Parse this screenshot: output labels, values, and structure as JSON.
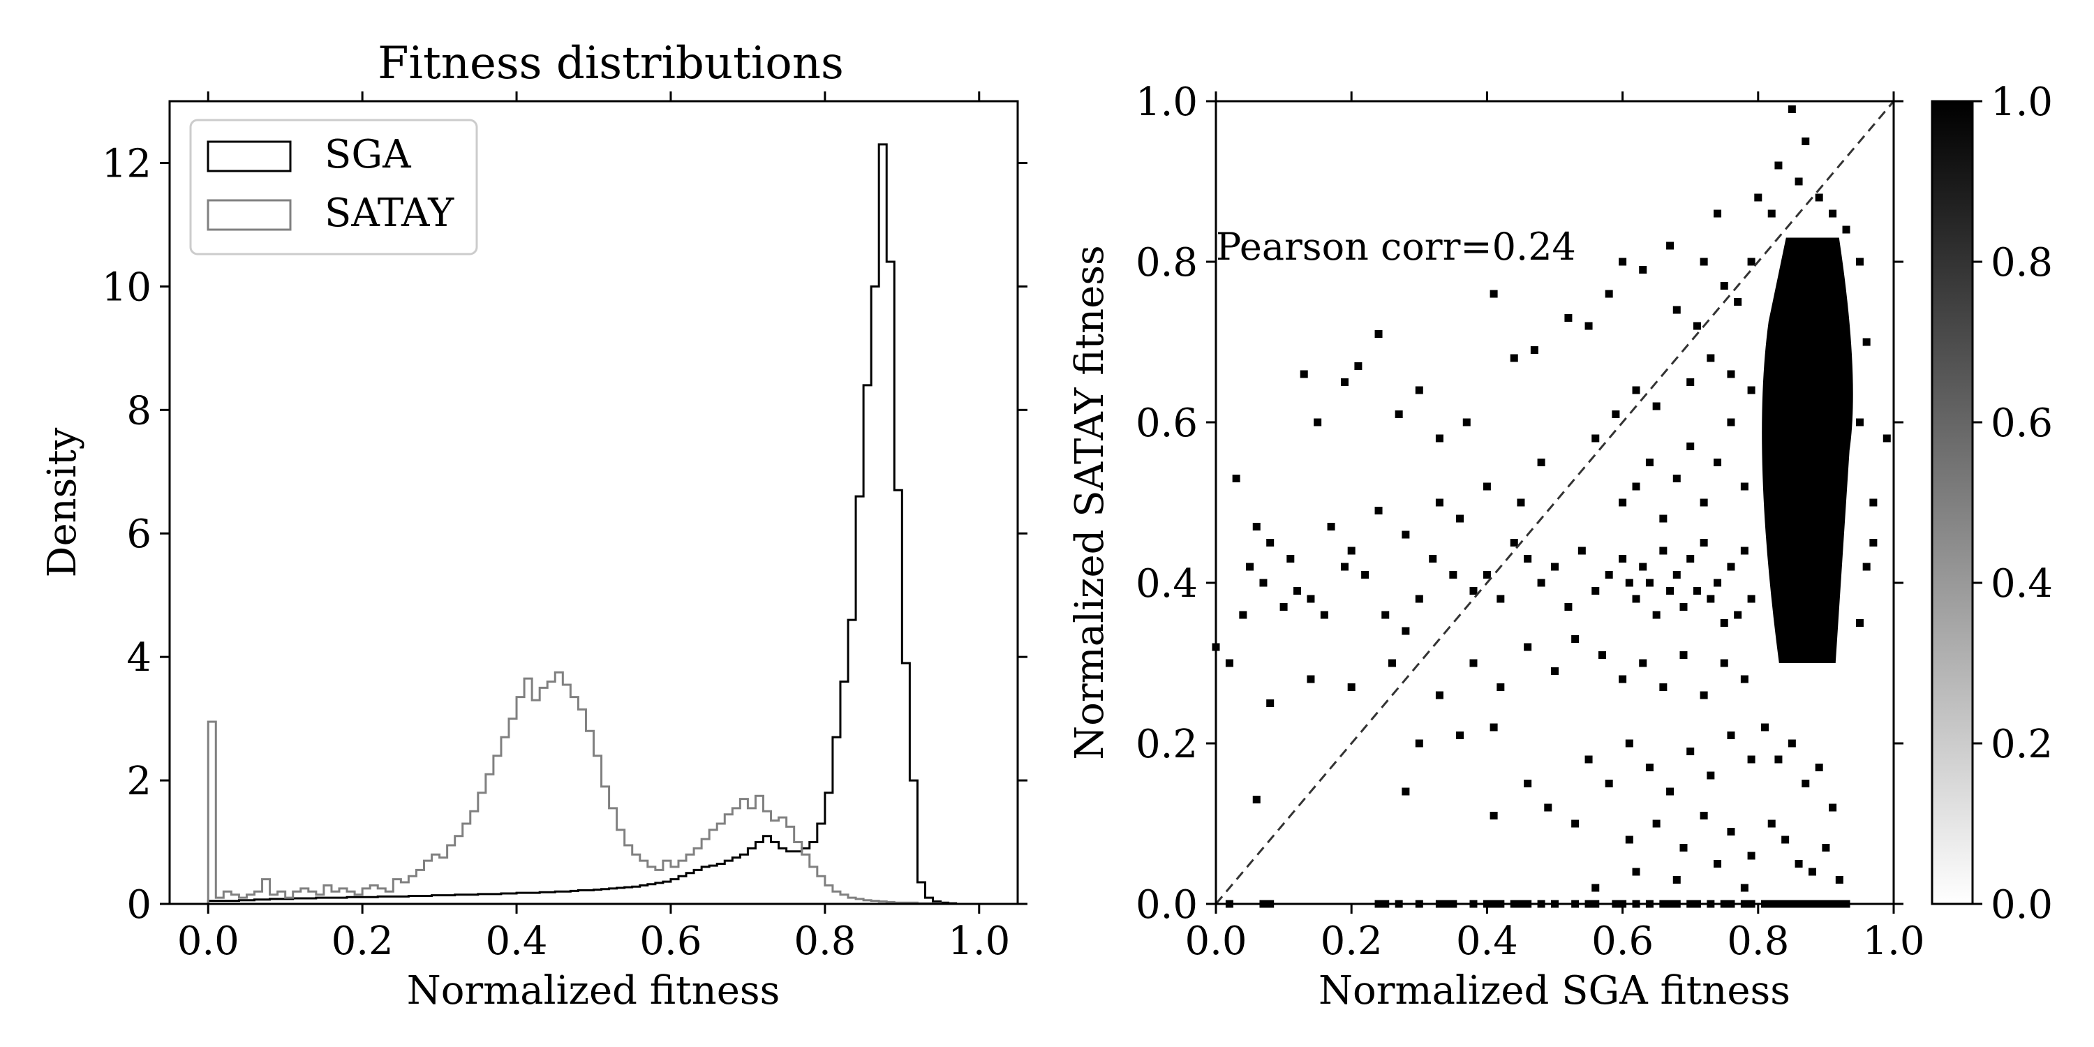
{
  "chart_data": [
    {
      "type": "histogram",
      "title": "Fitness distributions",
      "xlabel": "Normalized fitness",
      "ylabel": "Density",
      "xlim": [
        -0.05,
        1.05
      ],
      "ylim": [
        0,
        13
      ],
      "xticks": [
        "0.0",
        "0.2",
        "0.4",
        "0.6",
        "0.8",
        "1.0"
      ],
      "yticks": [
        "0",
        "2",
        "4",
        "6",
        "8",
        "10",
        "12"
      ],
      "legend": {
        "placement": "top-left",
        "entries": [
          "SGA",
          "SATAY"
        ]
      },
      "bin_width": 0.01,
      "series": [
        {
          "name": "SGA",
          "color": "#000000",
          "bin_start": 0.0,
          "values": [
            0.05,
            0.05,
            0.05,
            0.05,
            0.06,
            0.06,
            0.07,
            0.07,
            0.08,
            0.08,
            0.08,
            0.09,
            0.09,
            0.09,
            0.1,
            0.1,
            0.1,
            0.1,
            0.11,
            0.11,
            0.11,
            0.11,
            0.12,
            0.12,
            0.12,
            0.12,
            0.13,
            0.13,
            0.13,
            0.14,
            0.14,
            0.14,
            0.15,
            0.15,
            0.15,
            0.16,
            0.16,
            0.16,
            0.17,
            0.17,
            0.18,
            0.18,
            0.18,
            0.19,
            0.19,
            0.2,
            0.2,
            0.21,
            0.22,
            0.22,
            0.23,
            0.24,
            0.25,
            0.26,
            0.27,
            0.28,
            0.3,
            0.32,
            0.34,
            0.36,
            0.4,
            0.45,
            0.5,
            0.55,
            0.6,
            0.62,
            0.65,
            0.7,
            0.75,
            0.8,
            0.9,
            1.0,
            1.1,
            1.0,
            0.9,
            0.85,
            0.85,
            0.9,
            1.0,
            1.3,
            1.8,
            2.7,
            3.6,
            4.6,
            6.6,
            8.4,
            10.0,
            12.3,
            10.4,
            6.7,
            3.9,
            2.0,
            0.35,
            0.1,
            0.04,
            0.02,
            0.01,
            0.0,
            0.0,
            0.0
          ]
        },
        {
          "name": "SATAY",
          "color": "#808080",
          "bin_start": 0.0,
          "values": [
            2.95,
            0.1,
            0.2,
            0.15,
            0.1,
            0.15,
            0.2,
            0.4,
            0.15,
            0.2,
            0.1,
            0.2,
            0.25,
            0.2,
            0.15,
            0.3,
            0.2,
            0.25,
            0.2,
            0.15,
            0.25,
            0.3,
            0.25,
            0.2,
            0.4,
            0.35,
            0.45,
            0.55,
            0.7,
            0.8,
            0.75,
            0.95,
            1.1,
            1.3,
            1.5,
            1.8,
            2.1,
            2.4,
            2.7,
            3.0,
            3.35,
            3.65,
            3.3,
            3.5,
            3.6,
            3.75,
            3.55,
            3.35,
            3.15,
            2.8,
            2.4,
            1.9,
            1.55,
            1.2,
            0.95,
            0.8,
            0.7,
            0.6,
            0.55,
            0.7,
            0.6,
            0.7,
            0.8,
            0.9,
            1.05,
            1.2,
            1.3,
            1.45,
            1.55,
            1.7,
            1.55,
            1.75,
            1.5,
            1.35,
            1.4,
            1.25,
            1.0,
            0.8,
            0.6,
            0.45,
            0.3,
            0.2,
            0.15,
            0.1,
            0.08,
            0.06,
            0.05,
            0.04,
            0.03,
            0.02,
            0.02,
            0.02,
            0.01,
            0.01,
            0.01,
            0.0,
            0.0,
            0.0,
            0.0,
            0.0
          ]
        }
      ]
    },
    {
      "type": "heatmap",
      "xlabel": "Normalized SGA fitness",
      "ylabel": "Normalized SATAY fitness",
      "xlim": [
        0,
        1
      ],
      "ylim": [
        0,
        1
      ],
      "xticks": [
        "0.0",
        "0.2",
        "0.4",
        "0.6",
        "0.8",
        "1.0"
      ],
      "yticks": [
        "0.0",
        "0.2",
        "0.4",
        "0.6",
        "0.8",
        "1.0"
      ],
      "grid": false,
      "annotation": "Pearson corr=0.24",
      "reference_line": {
        "type": "diagonal",
        "style": "dashed",
        "from": [
          0,
          0
        ],
        "to": [
          1,
          1
        ]
      },
      "dense_region": {
        "x": [
          0.8,
          0.94
        ],
        "y": [
          0.3,
          0.83
        ]
      },
      "points": [
        [
          0.13,
          0.66
        ],
        [
          0.19,
          0.65
        ],
        [
          0.24,
          0.71
        ],
        [
          0.21,
          0.67
        ],
        [
          0.15,
          0.6
        ],
        [
          0.27,
          0.61
        ],
        [
          0.3,
          0.64
        ],
        [
          0.33,
          0.58
        ],
        [
          0.37,
          0.6
        ],
        [
          0.41,
          0.76
        ],
        [
          0.44,
          0.68
        ],
        [
          0.47,
          0.69
        ],
        [
          0.52,
          0.73
        ],
        [
          0.55,
          0.72
        ],
        [
          0.58,
          0.76
        ],
        [
          0.6,
          0.8
        ],
        [
          0.63,
          0.79
        ],
        [
          0.67,
          0.82
        ],
        [
          0.68,
          0.74
        ],
        [
          0.71,
          0.72
        ],
        [
          0.72,
          0.8
        ],
        [
          0.75,
          0.77
        ],
        [
          0.77,
          0.75
        ],
        [
          0.74,
          0.86
        ],
        [
          0.79,
          0.8
        ],
        [
          0.03,
          0.53
        ],
        [
          0.06,
          0.47
        ],
        [
          0.08,
          0.45
        ],
        [
          0.05,
          0.42
        ],
        [
          0.1,
          0.37
        ],
        [
          0.12,
          0.39
        ],
        [
          0.14,
          0.38
        ],
        [
          0.16,
          0.36
        ],
        [
          0.19,
          0.42
        ],
        [
          0.22,
          0.41
        ],
        [
          0.25,
          0.36
        ],
        [
          0.28,
          0.34
        ],
        [
          0.3,
          0.38
        ],
        [
          0.32,
          0.43
        ],
        [
          0.35,
          0.41
        ],
        [
          0.38,
          0.39
        ],
        [
          0.4,
          0.41
        ],
        [
          0.42,
          0.38
        ],
        [
          0.44,
          0.45
        ],
        [
          0.46,
          0.43
        ],
        [
          0.48,
          0.4
        ],
        [
          0.5,
          0.42
        ],
        [
          0.52,
          0.37
        ],
        [
          0.54,
          0.44
        ],
        [
          0.56,
          0.39
        ],
        [
          0.58,
          0.41
        ],
        [
          0.6,
          0.43
        ],
        [
          0.61,
          0.4
        ],
        [
          0.62,
          0.38
        ],
        [
          0.63,
          0.42
        ],
        [
          0.64,
          0.4
        ],
        [
          0.65,
          0.36
        ],
        [
          0.66,
          0.44
        ],
        [
          0.67,
          0.39
        ],
        [
          0.68,
          0.41
        ],
        [
          0.69,
          0.37
        ],
        [
          0.7,
          0.43
        ],
        [
          0.71,
          0.39
        ],
        [
          0.72,
          0.45
        ],
        [
          0.73,
          0.38
        ],
        [
          0.74,
          0.4
        ],
        [
          0.75,
          0.35
        ],
        [
          0.76,
          0.42
        ],
        [
          0.77,
          0.36
        ],
        [
          0.78,
          0.44
        ],
        [
          0.79,
          0.38
        ],
        [
          0.6,
          0.5
        ],
        [
          0.62,
          0.52
        ],
        [
          0.64,
          0.55
        ],
        [
          0.66,
          0.48
        ],
        [
          0.68,
          0.53
        ],
        [
          0.7,
          0.57
        ],
        [
          0.72,
          0.5
        ],
        [
          0.74,
          0.55
        ],
        [
          0.76,
          0.6
        ],
        [
          0.78,
          0.52
        ],
        [
          0.65,
          0.62
        ],
        [
          0.7,
          0.65
        ],
        [
          0.73,
          0.68
        ],
        [
          0.76,
          0.66
        ],
        [
          0.79,
          0.64
        ],
        [
          0.56,
          0.58
        ],
        [
          0.59,
          0.61
        ],
        [
          0.62,
          0.64
        ],
        [
          0.48,
          0.55
        ],
        [
          0.45,
          0.5
        ],
        [
          0.4,
          0.52
        ],
        [
          0.36,
          0.48
        ],
        [
          0.33,
          0.5
        ],
        [
          0.28,
          0.46
        ],
        [
          0.24,
          0.49
        ],
        [
          0.2,
          0.44
        ],
        [
          0.17,
          0.47
        ],
        [
          0.11,
          0.43
        ],
        [
          0.07,
          0.4
        ],
        [
          0.04,
          0.36
        ],
        [
          0.02,
          0.3
        ],
        [
          0.0,
          0.32
        ],
        [
          0.08,
          0.25
        ],
        [
          0.14,
          0.28
        ],
        [
          0.2,
          0.27
        ],
        [
          0.26,
          0.3
        ],
        [
          0.3,
          0.2
        ],
        [
          0.33,
          0.26
        ],
        [
          0.38,
          0.3
        ],
        [
          0.42,
          0.27
        ],
        [
          0.46,
          0.32
        ],
        [
          0.5,
          0.29
        ],
        [
          0.53,
          0.33
        ],
        [
          0.57,
          0.31
        ],
        [
          0.6,
          0.28
        ],
        [
          0.63,
          0.3
        ],
        [
          0.66,
          0.27
        ],
        [
          0.69,
          0.31
        ],
        [
          0.72,
          0.26
        ],
        [
          0.75,
          0.3
        ],
        [
          0.78,
          0.28
        ],
        [
          0.36,
          0.21
        ],
        [
          0.41,
          0.22
        ],
        [
          0.46,
          0.15
        ],
        [
          0.49,
          0.12
        ],
        [
          0.55,
          0.18
        ],
        [
          0.58,
          0.15
        ],
        [
          0.61,
          0.2
        ],
        [
          0.64,
          0.17
        ],
        [
          0.67,
          0.14
        ],
        [
          0.7,
          0.19
        ],
        [
          0.73,
          0.16
        ],
        [
          0.76,
          0.21
        ],
        [
          0.79,
          0.18
        ],
        [
          0.61,
          0.08
        ],
        [
          0.65,
          0.1
        ],
        [
          0.69,
          0.07
        ],
        [
          0.72,
          0.11
        ],
        [
          0.76,
          0.09
        ],
        [
          0.79,
          0.06
        ],
        [
          0.56,
          0.02
        ],
        [
          0.62,
          0.04
        ],
        [
          0.68,
          0.03
        ],
        [
          0.74,
          0.05
        ],
        [
          0.78,
          0.02
        ],
        [
          0.53,
          0.1
        ],
        [
          0.41,
          0.11
        ],
        [
          0.28,
          0.14
        ],
        [
          0.06,
          0.13
        ],
        [
          0.02,
          0.0
        ],
        [
          0.07,
          0.0
        ],
        [
          0.08,
          0.0
        ],
        [
          0.24,
          0.0
        ],
        [
          0.25,
          0.0
        ],
        [
          0.27,
          0.0
        ],
        [
          0.3,
          0.0
        ],
        [
          0.33,
          0.0
        ],
        [
          0.34,
          0.0
        ],
        [
          0.35,
          0.0
        ],
        [
          0.38,
          0.0
        ],
        [
          0.4,
          0.0
        ],
        [
          0.41,
          0.0
        ],
        [
          0.42,
          0.0
        ],
        [
          0.44,
          0.0
        ],
        [
          0.45,
          0.0
        ],
        [
          0.46,
          0.0
        ],
        [
          0.48,
          0.0
        ],
        [
          0.5,
          0.0
        ],
        [
          0.53,
          0.0
        ],
        [
          0.55,
          0.0
        ],
        [
          0.56,
          0.0
        ],
        [
          0.59,
          0.0
        ],
        [
          0.6,
          0.0
        ],
        [
          0.62,
          0.0
        ],
        [
          0.64,
          0.0
        ],
        [
          0.66,
          0.0
        ],
        [
          0.67,
          0.0
        ],
        [
          0.68,
          0.0
        ],
        [
          0.7,
          0.0
        ],
        [
          0.71,
          0.0
        ],
        [
          0.73,
          0.0
        ],
        [
          0.75,
          0.0
        ],
        [
          0.76,
          0.0
        ],
        [
          0.78,
          0.0
        ],
        [
          0.79,
          0.0
        ],
        [
          0.85,
          0.99
        ],
        [
          0.83,
          0.92
        ],
        [
          0.87,
          0.95
        ],
        [
          0.89,
          0.88
        ],
        [
          0.91,
          0.86
        ],
        [
          0.93,
          0.84
        ],
        [
          0.86,
          0.9
        ],
        [
          0.8,
          0.88
        ],
        [
          0.82,
          0.86
        ],
        [
          0.95,
          0.8
        ],
        [
          0.96,
          0.7
        ],
        [
          0.95,
          0.6
        ],
        [
          0.97,
          0.5
        ],
        [
          0.96,
          0.42
        ],
        [
          0.95,
          0.35
        ],
        [
          0.99,
          0.58
        ],
        [
          0.97,
          0.45
        ],
        [
          0.81,
          0.22
        ],
        [
          0.83,
          0.18
        ],
        [
          0.85,
          0.2
        ],
        [
          0.87,
          0.15
        ],
        [
          0.89,
          0.17
        ],
        [
          0.91,
          0.12
        ],
        [
          0.82,
          0.1
        ],
        [
          0.84,
          0.08
        ],
        [
          0.86,
          0.05
        ],
        [
          0.88,
          0.04
        ],
        [
          0.9,
          0.07
        ],
        [
          0.92,
          0.03
        ],
        [
          0.81,
          0.0
        ],
        [
          0.82,
          0.0
        ],
        [
          0.83,
          0.0
        ],
        [
          0.84,
          0.0
        ],
        [
          0.85,
          0.0
        ],
        [
          0.86,
          0.0
        ],
        [
          0.87,
          0.0
        ],
        [
          0.88,
          0.0
        ],
        [
          0.89,
          0.0
        ],
        [
          0.9,
          0.0
        ],
        [
          0.91,
          0.0
        ],
        [
          0.92,
          0.0
        ],
        [
          0.93,
          0.0
        ]
      ]
    },
    {
      "type": "colorbar",
      "range": [
        0,
        1
      ],
      "colormap": [
        "#ffffff",
        "#000000"
      ],
      "ticks": [
        "0.0",
        "0.2",
        "0.4",
        "0.6",
        "0.8",
        "1.0"
      ]
    }
  ]
}
